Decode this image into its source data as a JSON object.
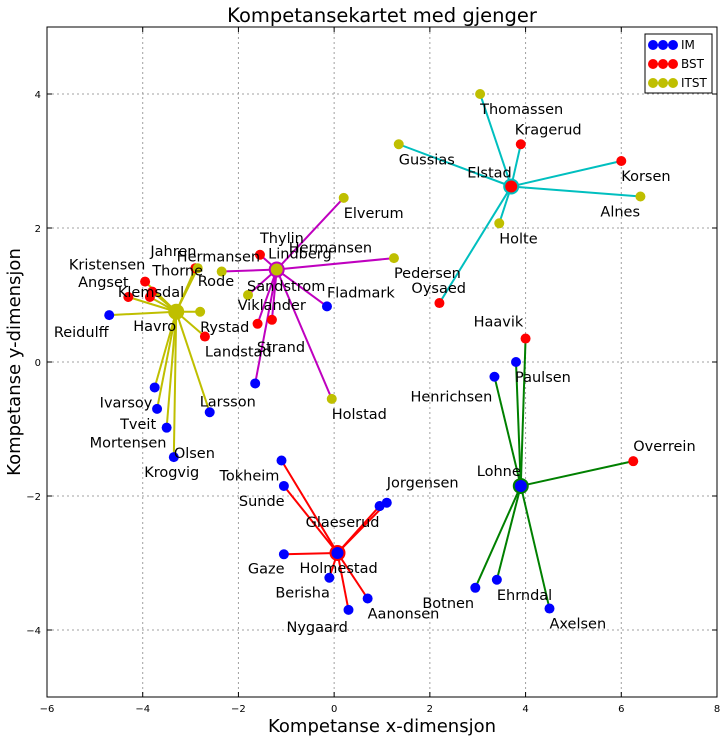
{
  "chart_data": {
    "type": "scatter",
    "title": "Kompetansekartet med gjenger",
    "xlabel": "Kompetanse x-dimensjon",
    "ylabel": "Kompetanse y-dimensjon",
    "xlim": [
      -6,
      8
    ],
    "ylim": [
      -5,
      5
    ],
    "xticks": [
      -6,
      -4,
      -2,
      0,
      2,
      4,
      6,
      8
    ],
    "yticks": [
      -4,
      -2,
      0,
      2,
      4
    ],
    "grid": true,
    "legend_position": "top-right",
    "series": [
      {
        "name": "IM",
        "color": "#0000ff"
      },
      {
        "name": "BST",
        "color": "#ff0000"
      },
      {
        "name": "ITST",
        "color": "#bfbf00"
      }
    ],
    "points": [
      {
        "label": "Reidulff",
        "x": -4.7,
        "y": 0.7,
        "group": "IM",
        "cluster": "yellow"
      },
      {
        "label": "Angset",
        "x": -4.3,
        "y": 0.97,
        "group": "BST",
        "cluster": "yellow"
      },
      {
        "label": "Kristensen",
        "x": -3.95,
        "y": 1.2,
        "group": "BST",
        "cluster": "yellow"
      },
      {
        "label": "Thorne",
        "x": -3.8,
        "y": 1.05,
        "group": "BST",
        "cluster": "yellow"
      },
      {
        "label": "Klemsdal",
        "x": -3.85,
        "y": 0.97,
        "group": "BST",
        "cluster": "yellow"
      },
      {
        "label": "Jahren",
        "x": -2.9,
        "y": 1.4,
        "group": "BST",
        "cluster": "yellow"
      },
      {
        "label": "Rode",
        "x": -2.85,
        "y": 1.4,
        "group": "ITST",
        "cluster": "yellow"
      },
      {
        "label": "Rystad",
        "x": -2.8,
        "y": 0.75,
        "group": "ITST",
        "cluster": "yellow"
      },
      {
        "label": "Landstad",
        "x": -2.7,
        "y": 0.38,
        "group": "BST",
        "cluster": "yellow"
      },
      {
        "label": "Ivarsoy",
        "x": -3.75,
        "y": -0.38,
        "group": "IM",
        "cluster": "yellow"
      },
      {
        "label": "Tveit",
        "x": -3.7,
        "y": -0.7,
        "group": "IM",
        "cluster": "yellow"
      },
      {
        "label": "Mortensen",
        "x": -3.5,
        "y": -0.98,
        "group": "IM",
        "cluster": "yellow"
      },
      {
        "label": "Olsen",
        "x": -3.35,
        "y": -1.42,
        "group": "IM",
        "cluster": "yellow"
      },
      {
        "label": "Larsson",
        "x": -2.6,
        "y": -0.75,
        "group": "IM",
        "cluster": "yellow"
      },
      {
        "label": "Thylin",
        "x": -1.55,
        "y": 1.6,
        "group": "BST",
        "cluster": "magenta"
      },
      {
        "label": "Hermansen",
        "x": -2.35,
        "y": 1.35,
        "group": "ITST",
        "cluster": "magenta"
      },
      {
        "label": "Sandstrom",
        "x": -1.8,
        "y": 1.0,
        "group": "ITST",
        "cluster": "magenta"
      },
      {
        "label": "Viklander",
        "x": -1.6,
        "y": 0.57,
        "group": "BST",
        "cluster": "magenta"
      },
      {
        "label": "Strand",
        "x": -1.3,
        "y": 0.63,
        "group": "BST",
        "cluster": "magenta"
      },
      {
        "label": "Lindberg",
        "x": -1.65,
        "y": -0.32,
        "group": "IM",
        "cluster": "magenta"
      },
      {
        "label": "Fladmark",
        "x": -0.15,
        "y": 0.83,
        "group": "IM",
        "cluster": "magenta"
      },
      {
        "label": "Elverum",
        "x": 0.2,
        "y": 2.45,
        "group": "ITST",
        "cluster": "magenta"
      },
      {
        "label": "Pedersen",
        "x": 1.25,
        "y": 1.55,
        "group": "ITST",
        "cluster": "magenta"
      },
      {
        "label": "Holstad",
        "x": -0.05,
        "y": -0.55,
        "group": "ITST",
        "cluster": "magenta"
      },
      {
        "label": "Thomassen",
        "x": 3.05,
        "y": 4.0,
        "group": "ITST",
        "cluster": "cyan"
      },
      {
        "label": "Gussias",
        "x": 1.35,
        "y": 3.25,
        "group": "ITST",
        "cluster": "cyan"
      },
      {
        "label": "Kragerud",
        "x": 3.9,
        "y": 3.25,
        "group": "BST",
        "cluster": "cyan"
      },
      {
        "label": "Korsen",
        "x": 6.0,
        "y": 3.0,
        "group": "BST",
        "cluster": "cyan"
      },
      {
        "label": "Alnes",
        "x": 6.4,
        "y": 2.47,
        "group": "ITST",
        "cluster": "cyan"
      },
      {
        "label": "Holte",
        "x": 3.45,
        "y": 2.07,
        "group": "ITST",
        "cluster": "cyan"
      },
      {
        "label": "Oysaed",
        "x": 2.2,
        "y": 0.88,
        "group": "BST",
        "cluster": "cyan"
      },
      {
        "label": "Haavik",
        "x": 4.0,
        "y": 0.35,
        "group": "BST",
        "cluster": "green"
      },
      {
        "label": "Paulsen",
        "x": 3.8,
        "y": 0.0,
        "group": "IM",
        "cluster": "green"
      },
      {
        "label": "Henrichsen",
        "x": 3.35,
        "y": -0.22,
        "group": "IM",
        "cluster": "green"
      },
      {
        "label": "Overrein",
        "x": 6.25,
        "y": -1.48,
        "group": "BST",
        "cluster": "green"
      },
      {
        "label": "Botnen",
        "x": 2.95,
        "y": -3.37,
        "group": "IM",
        "cluster": "green"
      },
      {
        "label": "Ehrndal",
        "x": 3.4,
        "y": -3.25,
        "group": "IM",
        "cluster": "green"
      },
      {
        "label": "Axelsen",
        "x": 4.5,
        "y": -3.68,
        "group": "IM",
        "cluster": "green"
      },
      {
        "label": "Tokheim",
        "x": -1.1,
        "y": -1.47,
        "group": "IM",
        "cluster": "red"
      },
      {
        "label": "Sunde",
        "x": -1.05,
        "y": -1.85,
        "group": "IM",
        "cluster": "red"
      },
      {
        "label": "Glaeserud",
        "x": 0.95,
        "y": -2.15,
        "group": "IM",
        "cluster": "red"
      },
      {
        "label": "Jorgensen",
        "x": 1.1,
        "y": -2.1,
        "group": "IM",
        "cluster": "red"
      },
      {
        "label": "Gaze",
        "x": -1.05,
        "y": -2.87,
        "group": "IM",
        "cluster": "red"
      },
      {
        "label": "Berisha",
        "x": -0.1,
        "y": -3.22,
        "group": "IM",
        "cluster": "red"
      },
      {
        "label": "Nygaard",
        "x": 0.3,
        "y": -3.7,
        "group": "IM",
        "cluster": "red"
      },
      {
        "label": "Aanonsen",
        "x": 0.7,
        "y": -3.53,
        "group": "IM",
        "cluster": "red"
      }
    ],
    "centers": [
      {
        "label": "Havro",
        "x": -3.3,
        "y": 0.75,
        "group": "ITST",
        "cluster": "yellow"
      },
      {
        "label": "Krogvig",
        "x": -3.3,
        "y": 0.75,
        "group": "ITST",
        "cluster": "yellow"
      },
      {
        "label": "Hermansen",
        "x": -1.2,
        "y": 1.38,
        "group": "ITST",
        "cluster": "magenta"
      },
      {
        "label": "Elstad",
        "x": 3.7,
        "y": 2.62,
        "group": "BST",
        "cluster": "cyan"
      },
      {
        "label": "Lohne",
        "x": 3.9,
        "y": -1.85,
        "group": "IM",
        "cluster": "green"
      },
      {
        "label": "Holmestad",
        "x": 0.07,
        "y": -2.85,
        "group": "IM",
        "cluster": "red"
      }
    ],
    "cluster_colors": {
      "yellow": "#bfbf00",
      "magenta": "#bf00bf",
      "cyan": "#00bfbf",
      "green": "#008000",
      "red": "#ff0000"
    }
  }
}
